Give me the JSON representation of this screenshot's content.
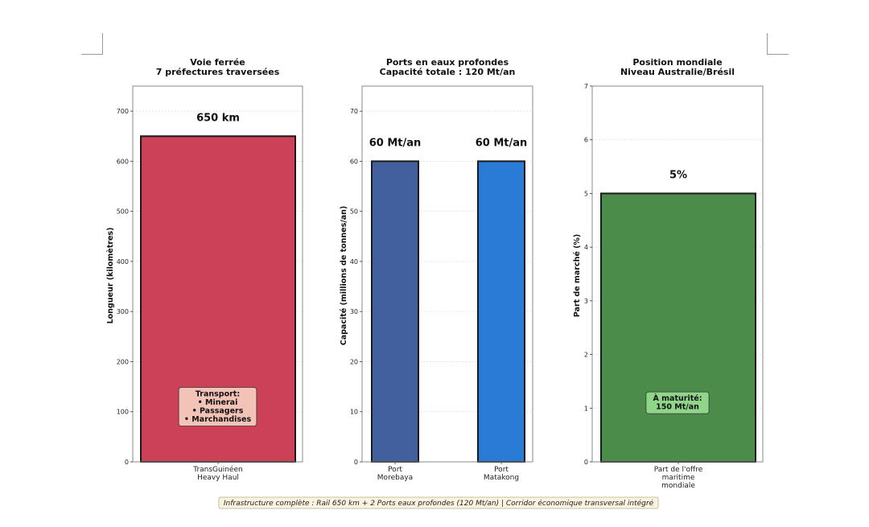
{
  "chart_data": [
    {
      "type": "bar",
      "title": [
        "Voie ferrée",
        "7 préfectures traversées"
      ],
      "ylabel": "Longueur (kilomètres)",
      "ylim": [
        0,
        750
      ],
      "yticks": [
        0,
        100,
        200,
        300,
        400,
        500,
        600,
        700
      ],
      "categories": [
        [
          "TransGuinéen",
          "Heavy Haul"
        ]
      ],
      "values": [
        650
      ],
      "value_labels": [
        "650 km"
      ],
      "colors": [
        "#cc4158"
      ],
      "annotation": {
        "lines": [
          "Transport:",
          "• Minerai",
          "• Passagers",
          "• Marchandises"
        ],
        "facecolor": "#f2c3b6",
        "at_value": 110
      }
    },
    {
      "type": "bar",
      "title": [
        "Ports en eaux profondes",
        "Capacité totale : 120 Mt/an"
      ],
      "ylabel": "Capacité (millions de tonnes/an)",
      "ylim": [
        0,
        75
      ],
      "yticks": [
        0,
        10,
        20,
        30,
        40,
        50,
        60,
        70
      ],
      "categories": [
        [
          "Port",
          "Morebaya"
        ],
        [
          "Port",
          "Matakong"
        ]
      ],
      "values": [
        60,
        60
      ],
      "value_labels": [
        "60 Mt/an",
        "60 Mt/an"
      ],
      "colors": [
        "#41609d",
        "#2a7bd6"
      ]
    },
    {
      "type": "bar",
      "title": [
        "Position mondiale",
        "Niveau Australie/Brésil"
      ],
      "ylabel": "Part de marché (%)",
      "ylim": [
        0,
        7
      ],
      "yticks": [
        0,
        1,
        2,
        3,
        4,
        5,
        6,
        7
      ],
      "categories": [
        [
          "Part de l'offre",
          "maritime",
          "mondiale"
        ]
      ],
      "values": [
        5
      ],
      "value_labels": [
        "5%"
      ],
      "colors": [
        "#4c8c4a"
      ],
      "annotation": {
        "lines": [
          "À maturité:",
          "150 Mt/an"
        ],
        "facecolor": "#8fd68a",
        "at_value": 1.1
      }
    }
  ],
  "footer": "Infrastructure complète : Rail 650 km + 2 Ports eaux profondes (120 Mt/an) | Corridor économique transversal intégré"
}
